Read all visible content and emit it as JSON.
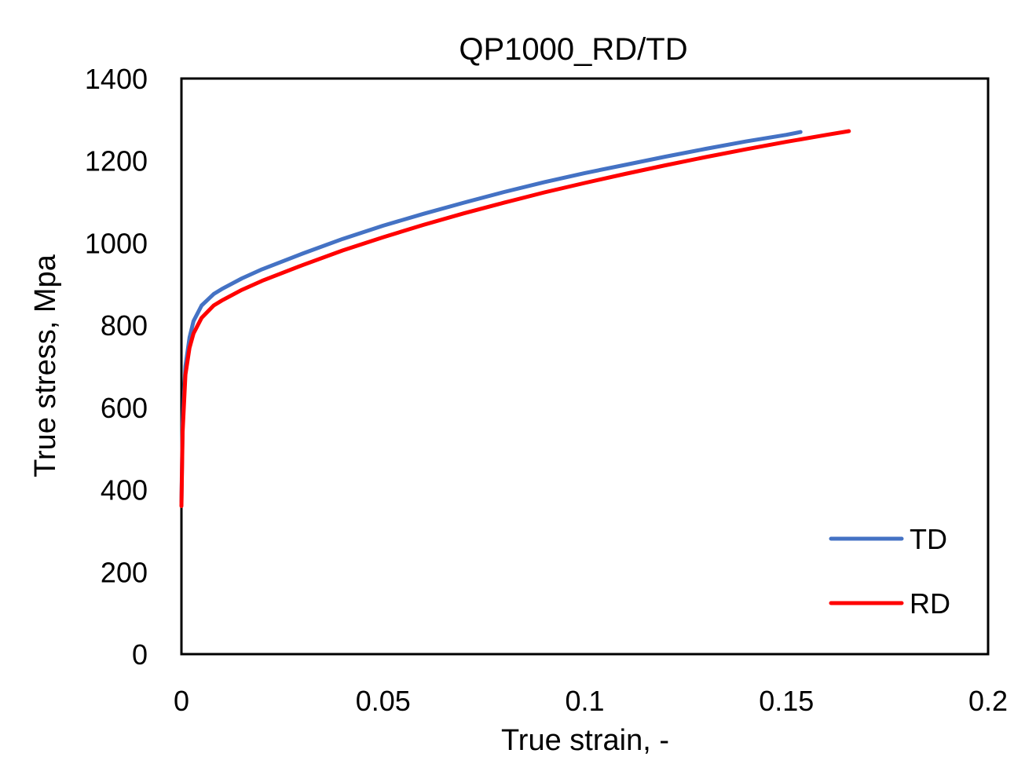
{
  "chart_data": {
    "type": "line",
    "title": "QP1000_RD/TD",
    "xlabel": "True strain, -",
    "ylabel": "True stress, Mpa",
    "xlim": [
      0,
      0.2
    ],
    "ylim": [
      0,
      1400
    ],
    "x_ticks": [
      0,
      0.05,
      0.1,
      0.15,
      0.2
    ],
    "x_tick_labels": [
      "0",
      "0.05",
      "0.1",
      "0.15",
      "0.2"
    ],
    "y_ticks": [
      0,
      200,
      400,
      600,
      800,
      1000,
      1200,
      1400
    ],
    "y_tick_labels": [
      "0",
      "200",
      "400",
      "600",
      "800",
      "1000",
      "1200",
      "1400"
    ],
    "grid": false,
    "legend_position": "bottom-right",
    "series": [
      {
        "name": "TD",
        "color": "#4472c4",
        "points": [
          [
            0.0,
            370
          ],
          [
            0.0003,
            560
          ],
          [
            0.001,
            700
          ],
          [
            0.002,
            770
          ],
          [
            0.003,
            810
          ],
          [
            0.005,
            848
          ],
          [
            0.008,
            876
          ],
          [
            0.01,
            888
          ],
          [
            0.015,
            914
          ],
          [
            0.02,
            936
          ],
          [
            0.03,
            974
          ],
          [
            0.04,
            1010
          ],
          [
            0.05,
            1042
          ],
          [
            0.06,
            1071
          ],
          [
            0.07,
            1098
          ],
          [
            0.08,
            1124
          ],
          [
            0.09,
            1148
          ],
          [
            0.1,
            1170
          ],
          [
            0.11,
            1190
          ],
          [
            0.12,
            1210
          ],
          [
            0.13,
            1229
          ],
          [
            0.14,
            1247
          ],
          [
            0.15,
            1263
          ],
          [
            0.1535,
            1270
          ]
        ]
      },
      {
        "name": "RD",
        "color": "#ff0000",
        "points": [
          [
            0.0,
            360
          ],
          [
            0.0003,
            540
          ],
          [
            0.001,
            680
          ],
          [
            0.002,
            745
          ],
          [
            0.003,
            780
          ],
          [
            0.005,
            818
          ],
          [
            0.008,
            848
          ],
          [
            0.01,
            860
          ],
          [
            0.015,
            886
          ],
          [
            0.02,
            908
          ],
          [
            0.03,
            946
          ],
          [
            0.04,
            982
          ],
          [
            0.05,
            1014
          ],
          [
            0.06,
            1044
          ],
          [
            0.07,
            1072
          ],
          [
            0.08,
            1098
          ],
          [
            0.09,
            1123
          ],
          [
            0.1,
            1146
          ],
          [
            0.11,
            1168
          ],
          [
            0.12,
            1189
          ],
          [
            0.13,
            1209
          ],
          [
            0.14,
            1228
          ],
          [
            0.15,
            1246
          ],
          [
            0.16,
            1263
          ],
          [
            0.1655,
            1272
          ]
        ]
      }
    ]
  }
}
